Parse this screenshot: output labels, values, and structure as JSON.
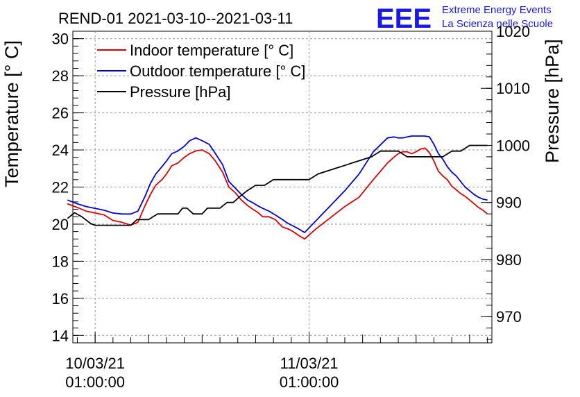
{
  "chart_data": {
    "type": "line",
    "title": "REND-01 2021-03-10--2021-03-11",
    "ylabel_left": "Temperature [° C]",
    "ylabel_right": "Pressure [hPa]",
    "ylim_left": [
      13.6,
      30.4
    ],
    "ylim_right": [
      965.4,
      1020.0
    ],
    "xlim_hours": [
      -2.5,
      44.5
    ],
    "left_ticks": [
      14,
      16,
      18,
      20,
      22,
      24,
      26,
      28,
      30
    ],
    "right_ticks": [
      970,
      980,
      990,
      1000,
      1010,
      1020
    ],
    "x_ticks": [
      {
        "hour": 0,
        "line1": "10/03/21",
        "line2": "01:00:00"
      },
      {
        "hour": 24,
        "line1": "11/03/21",
        "line2": "01:00:00"
      }
    ],
    "grid": true,
    "legend": [
      {
        "label": "Indoor temperature [° C]",
        "color": "#dd0000"
      },
      {
        "label": "Outdoor temperature [° C]",
        "color": "#0000dd"
      },
      {
        "label": "Pressure [hPa]",
        "color": "#000000"
      }
    ],
    "series": [
      {
        "name": "Indoor temperature [° C]",
        "axis": "left",
        "color": "#dd0000",
        "x": [
          -3.1,
          -2,
          -1,
          0,
          1,
          2,
          3,
          4,
          4.8,
          5.6,
          6.2,
          6.8,
          7.5,
          8,
          8.6,
          9.3,
          10,
          10.6,
          11.3,
          12,
          12.8,
          13.5,
          14.3,
          15,
          15.7,
          16.4,
          17.1,
          17.7,
          18.2,
          18.8,
          19.5,
          20.2,
          21,
          21.6,
          22.2,
          22.8,
          23.5,
          24.2,
          24.8,
          25.6,
          26.4,
          28,
          29.6,
          31.2,
          32.8,
          33.5,
          34,
          34.5,
          35,
          35.5,
          36,
          36.5,
          37,
          37.5,
          38,
          38.5,
          39,
          39.5,
          40,
          40.5,
          41,
          41.5,
          42,
          42.5,
          43,
          43.5,
          44
        ],
        "y": [
          21.1,
          20.9,
          20.7,
          20.6,
          20.5,
          20.2,
          20.1,
          19.95,
          20.1,
          21.0,
          21.6,
          22.1,
          22.4,
          22.7,
          23.15,
          23.3,
          23.6,
          23.8,
          23.95,
          24.0,
          23.8,
          23.4,
          22.8,
          22.0,
          21.7,
          21.3,
          21.0,
          20.8,
          20.65,
          20.4,
          20.4,
          20.25,
          19.85,
          19.75,
          19.6,
          19.4,
          19.2,
          19.5,
          19.75,
          20.05,
          20.35,
          20.95,
          21.45,
          22.4,
          23.3,
          23.6,
          23.8,
          23.9,
          23.9,
          23.8,
          23.9,
          24.05,
          24.1,
          23.85,
          23.4,
          22.85,
          22.6,
          22.4,
          22.05,
          21.85,
          21.65,
          21.5,
          21.3,
          21.1,
          20.9,
          20.75,
          20.55
        ]
      },
      {
        "name": "Outdoor temperature [° C]",
        "axis": "left",
        "color": "#0000dd",
        "x": [
          -3.1,
          -2,
          -1,
          0,
          1,
          2,
          3,
          4,
          4.8,
          5.6,
          6.2,
          6.8,
          7.5,
          8,
          8.6,
          9.3,
          10,
          10.6,
          11.3,
          12,
          12.8,
          13.5,
          14.3,
          15,
          15.7,
          16.4,
          17.1,
          17.7,
          18.2,
          18.8,
          19.5,
          20.2,
          21,
          21.6,
          22.2,
          22.8,
          23.5,
          24.2,
          24.8,
          25.6,
          26.4,
          28,
          29.6,
          31.2,
          32.8,
          33.5,
          34,
          34.5,
          35,
          35.5,
          36,
          36.5,
          37,
          37.5,
          38,
          38.5,
          39,
          39.5,
          40,
          40.5,
          41,
          41.5,
          42,
          42.5,
          43,
          43.5,
          44
        ],
        "y": [
          21.3,
          21.1,
          20.95,
          20.85,
          20.75,
          20.6,
          20.55,
          20.55,
          20.7,
          21.5,
          22.2,
          22.7,
          23.1,
          23.4,
          23.8,
          23.95,
          24.2,
          24.5,
          24.65,
          24.5,
          24.3,
          23.8,
          23.2,
          22.3,
          21.95,
          21.6,
          21.3,
          21.15,
          21.0,
          20.85,
          20.7,
          20.5,
          20.25,
          20.05,
          19.9,
          19.75,
          19.55,
          19.9,
          20.2,
          20.6,
          21.0,
          21.8,
          22.7,
          23.9,
          24.65,
          24.7,
          24.65,
          24.65,
          24.7,
          24.75,
          24.75,
          24.75,
          24.75,
          24.7,
          24.3,
          23.8,
          23.5,
          23.1,
          22.8,
          22.6,
          22.3,
          22.0,
          21.8,
          21.6,
          21.45,
          21.35,
          21.3
        ]
      },
      {
        "name": "Pressure [hPa]",
        "axis": "right",
        "color": "#000000",
        "x": [
          -3.1,
          -2.3,
          -1.5,
          -0.5,
          0,
          1,
          2,
          3,
          4,
          4.7,
          5.4,
          6,
          7,
          8,
          9.3,
          9.8,
          10.3,
          11,
          12,
          12.6,
          13.2,
          14,
          14.8,
          15.5,
          16.2,
          17,
          18,
          19,
          20,
          21,
          22,
          23,
          24,
          25,
          26,
          27,
          28,
          29,
          30,
          31,
          32,
          33,
          34,
          35,
          36,
          37,
          38,
          39,
          40,
          41,
          42,
          43,
          44
        ],
        "y": [
          987.2,
          988.2,
          987.5,
          986.3,
          986.0,
          986.0,
          986.0,
          986.0,
          986.0,
          987.0,
          987.0,
          987.0,
          988.0,
          988.0,
          988.0,
          989.0,
          989.0,
          988.0,
          988.0,
          989.0,
          989.0,
          989.0,
          990.0,
          990.0,
          991.0,
          992.0,
          993.0,
          993.0,
          994.0,
          994.0,
          994.0,
          994.0,
          994.0,
          995.0,
          995.5,
          996.0,
          996.5,
          997.0,
          997.5,
          998.0,
          999.0,
          999.0,
          999.0,
          998.0,
          998.0,
          998.0,
          998.0,
          998.0,
          999.0,
          999.0,
          1000.0,
          1000.0,
          1000.0
        ]
      }
    ]
  },
  "logo": {
    "mark": "EEE",
    "line1": "Extreme Energy Events",
    "line2": "La Scienza nelle Scuole"
  }
}
